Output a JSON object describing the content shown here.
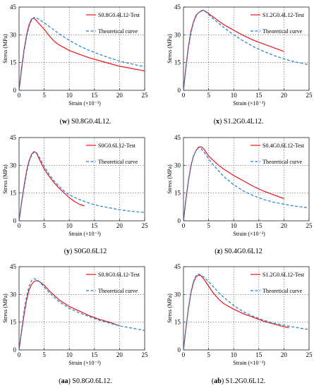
{
  "chart_data": [
    {
      "type": "line",
      "caption_id": "w",
      "caption_text": "S0.8G0.4L12.",
      "xlabel": "Strain (×10⁻³)",
      "ylabel": "Stress (MPa)",
      "xlim": [
        0,
        25
      ],
      "ylim": [
        0,
        45
      ],
      "xticks": [
        0,
        5,
        10,
        15,
        20,
        25
      ],
      "yticks": [
        0,
        15,
        30,
        45
      ],
      "grid": true,
      "legend_position": "top-right",
      "series": [
        {
          "name": "S0.8G0.4L12-Test",
          "color": "#e8151b",
          "style": "solid",
          "x": [
            0,
            0.5,
            1,
            1.5,
            2,
            2.5,
            3,
            3.5,
            4,
            5,
            6,
            7,
            8,
            9,
            10,
            12,
            14,
            16,
            18,
            20,
            22,
            24,
            25
          ],
          "y": [
            0,
            12,
            22,
            30,
            35.5,
            38.5,
            39,
            37.5,
            36,
            33,
            29.5,
            26.5,
            24.5,
            23,
            21.5,
            19.5,
            17.5,
            16,
            14.5,
            13,
            12,
            11,
            10.5
          ]
        },
        {
          "name": "Theoretical curve",
          "color": "#1f7fd6",
          "style": "dashed",
          "x": [
            0,
            0.5,
            1,
            1.5,
            2,
            2.5,
            3,
            3.5,
            4,
            5,
            6,
            8,
            10,
            12,
            14,
            16,
            18,
            20,
            22,
            24,
            25
          ],
          "y": [
            0,
            11,
            21,
            29,
            34.5,
            38,
            39.5,
            39,
            38.3,
            36.5,
            34.5,
            30.5,
            27,
            24,
            21.5,
            19.5,
            17.5,
            15.8,
            14.5,
            13.3,
            12.8
          ]
        }
      ]
    },
    {
      "type": "line",
      "caption_id": "x",
      "caption_text": "S1.2G0.4L12.",
      "xlabel": "Strain (×10⁻³)",
      "ylabel": "Stress (MPa)",
      "xlim": [
        0,
        25
      ],
      "ylim": [
        0,
        45
      ],
      "xticks": [
        0,
        5,
        10,
        15,
        20,
        25
      ],
      "yticks": [
        0,
        15,
        30,
        45
      ],
      "grid": true,
      "legend_position": "top-right",
      "series": [
        {
          "name": "S1.2G0.4L12-Test",
          "color": "#e8151b",
          "style": "solid",
          "x": [
            0,
            0.5,
            1,
            1.5,
            2,
            2.5,
            3,
            3.5,
            4,
            4.5,
            5,
            6,
            7,
            8,
            9,
            10,
            12,
            14,
            16,
            18,
            20
          ],
          "y": [
            0,
            13,
            24,
            32,
            37,
            40.5,
            42,
            42.8,
            43.3,
            42.5,
            41.5,
            39.5,
            37.5,
            35.5,
            34,
            32.5,
            29.5,
            27,
            25,
            23,
            21
          ]
        },
        {
          "name": "Theoretical curve",
          "color": "#1f7fd6",
          "style": "dashed",
          "x": [
            0,
            0.5,
            1,
            1.5,
            2,
            2.5,
            3,
            3.5,
            4,
            4.5,
            5,
            6,
            8,
            10,
            12,
            14,
            16,
            18,
            20,
            22,
            25
          ],
          "y": [
            0,
            12,
            23,
            31,
            36.5,
            40,
            42,
            43,
            43.3,
            42.3,
            41,
            38.5,
            34,
            30,
            26.5,
            23.5,
            21,
            18.8,
            17,
            15.5,
            13.8
          ]
        }
      ]
    },
    {
      "type": "line",
      "caption_id": "y",
      "caption_text": "S0G0.6L12",
      "xlabel": "Strain (×10⁻³)",
      "ylabel": "Stress (MPa)",
      "xlim": [
        0,
        25
      ],
      "ylim": [
        0,
        45
      ],
      "xticks": [
        0,
        5,
        10,
        15,
        20,
        25
      ],
      "yticks": [
        0,
        15,
        30,
        45
      ],
      "grid": true,
      "legend_position": "top-right",
      "series": [
        {
          "name": "S0G0.6L12-Test",
          "color": "#e8151b",
          "style": "solid",
          "x": [
            0,
            0.5,
            1,
            1.5,
            2,
            2.5,
            3,
            3.5,
            4,
            5,
            6,
            7,
            8,
            9,
            10,
            11,
            12,
            13
          ],
          "y": [
            0,
            10,
            19,
            27,
            32.5,
            36,
            37.5,
            36.5,
            33.5,
            28,
            24,
            20.5,
            17.5,
            15,
            12.5,
            10.5,
            9,
            8
          ]
        },
        {
          "name": "Theoretical curve",
          "color": "#1f7fd6",
          "style": "dashed",
          "x": [
            0,
            0.5,
            1,
            1.5,
            2,
            2.5,
            3,
            3.5,
            4,
            5,
            6,
            7,
            8,
            9,
            10,
            12,
            14,
            16,
            18,
            20,
            22,
            25
          ],
          "y": [
            0,
            9.5,
            18,
            26,
            32,
            35.5,
            37.2,
            36.8,
            34.5,
            29.5,
            25,
            21.5,
            18.5,
            16,
            14,
            11.5,
            9.5,
            8,
            7,
            6,
            5.3,
            4.5
          ]
        }
      ]
    },
    {
      "type": "line",
      "caption_id": "z",
      "caption_text": "S0.4G0.6L12",
      "xlabel": "Strain (×10⁻³)",
      "ylabel": "Stress (MPa)",
      "xlim": [
        0,
        25
      ],
      "ylim": [
        0,
        45
      ],
      "xticks": [
        0,
        5,
        10,
        15,
        20,
        25
      ],
      "yticks": [
        0,
        15,
        30,
        45
      ],
      "grid": true,
      "legend_position": "top-right",
      "series": [
        {
          "name": "S0.4G0.6L12-Test",
          "color": "#e8151b",
          "style": "solid",
          "x": [
            0,
            0.5,
            1,
            1.5,
            2,
            2.5,
            3,
            3.5,
            4,
            4.5,
            5,
            6,
            7,
            8,
            10,
            12,
            14,
            16,
            18,
            20
          ],
          "y": [
            0,
            12,
            22,
            30,
            35,
            38,
            39.8,
            40,
            39,
            37,
            35,
            32.5,
            30,
            28,
            24.5,
            21.5,
            18.5,
            16,
            14,
            12
          ]
        },
        {
          "name": "Theoretical curve",
          "color": "#1f7fd6",
          "style": "dashed",
          "x": [
            0,
            0.5,
            1,
            1.5,
            2,
            2.5,
            3,
            3.5,
            4,
            5,
            6,
            7,
            8,
            10,
            12,
            14,
            16,
            18,
            20,
            22,
            25
          ],
          "y": [
            0,
            11.5,
            21.5,
            29.5,
            35,
            38,
            39.5,
            39,
            37.5,
            33.5,
            30,
            27,
            24,
            19.5,
            16,
            13.5,
            11.5,
            10,
            9,
            8,
            7
          ]
        }
      ]
    },
    {
      "type": "line",
      "caption_id": "aa",
      "caption_text": "S0.8G0.6L12.",
      "xlabel": "Strain (×10⁻³)",
      "ylabel": "Stress (MPa)",
      "xlim": [
        0,
        25
      ],
      "ylim": [
        0,
        45
      ],
      "xticks": [
        0,
        5,
        10,
        15,
        20,
        25
      ],
      "yticks": [
        0,
        15,
        30,
        45
      ],
      "grid": true,
      "legend_position": "top-right",
      "series": [
        {
          "name": "S0.8G0.6L12-Test",
          "color": "#e8151b",
          "style": "solid",
          "x": [
            0,
            0.5,
            1,
            1.5,
            2,
            2.5,
            3,
            3.5,
            4,
            5,
            6,
            7,
            8,
            10,
            12,
            14,
            16,
            18,
            20
          ],
          "y": [
            0,
            10,
            19,
            27,
            32.5,
            35.5,
            37,
            37.5,
            37,
            35,
            32,
            29.5,
            27,
            23.5,
            21,
            18.5,
            16.5,
            15,
            13
          ]
        },
        {
          "name": "Theoretical curve",
          "color": "#1f7fd6",
          "style": "dashed",
          "x": [
            0,
            0.5,
            1,
            1.5,
            2,
            2.5,
            3,
            3.5,
            4,
            5,
            6,
            7,
            8,
            10,
            12,
            14,
            16,
            18,
            20,
            22,
            25
          ],
          "y": [
            0,
            11,
            21,
            29,
            34.5,
            37.5,
            38.5,
            38,
            37,
            34,
            31,
            28.5,
            26,
            22.5,
            20,
            18,
            16,
            14.5,
            13,
            12,
            10.5
          ]
        }
      ]
    },
    {
      "type": "line",
      "caption_id": "ab",
      "caption_text": "S1.2G0.6L12.",
      "xlabel": "Strain (×10⁻³)",
      "ylabel": "Stress (MPa)",
      "xlim": [
        0,
        25
      ],
      "ylim": [
        0,
        45
      ],
      "xticks": [
        0,
        5,
        10,
        15,
        20,
        25
      ],
      "yticks": [
        0,
        15,
        30,
        45
      ],
      "grid": true,
      "legend_position": "top-right",
      "series": [
        {
          "name": "S1.2G0.6L12-Test",
          "color": "#e8151b",
          "style": "solid",
          "x": [
            0,
            0.5,
            1,
            1.5,
            2,
            2.5,
            3,
            3.5,
            4,
            5,
            6,
            7,
            8,
            10,
            12,
            14,
            16,
            18,
            20,
            21
          ],
          "y": [
            0,
            12,
            22.5,
            31,
            36.5,
            39.5,
            40.5,
            40,
            38.5,
            34.5,
            30.5,
            27.5,
            25,
            22,
            19.5,
            17.5,
            15.5,
            14,
            12.5,
            12
          ]
        },
        {
          "name": "Theoretical curve",
          "color": "#1f7fd6",
          "style": "dashed",
          "x": [
            0,
            0.5,
            1,
            1.5,
            2,
            2.5,
            3,
            3.5,
            4,
            5,
            6,
            7,
            8,
            10,
            12,
            14,
            16,
            18,
            20,
            22,
            25
          ],
          "y": [
            0,
            12,
            23,
            31.5,
            37,
            40,
            41,
            40.5,
            39.5,
            37,
            34,
            31,
            28.5,
            24,
            20.5,
            18,
            16,
            14.5,
            13.3,
            12.3,
            11
          ]
        }
      ]
    }
  ]
}
